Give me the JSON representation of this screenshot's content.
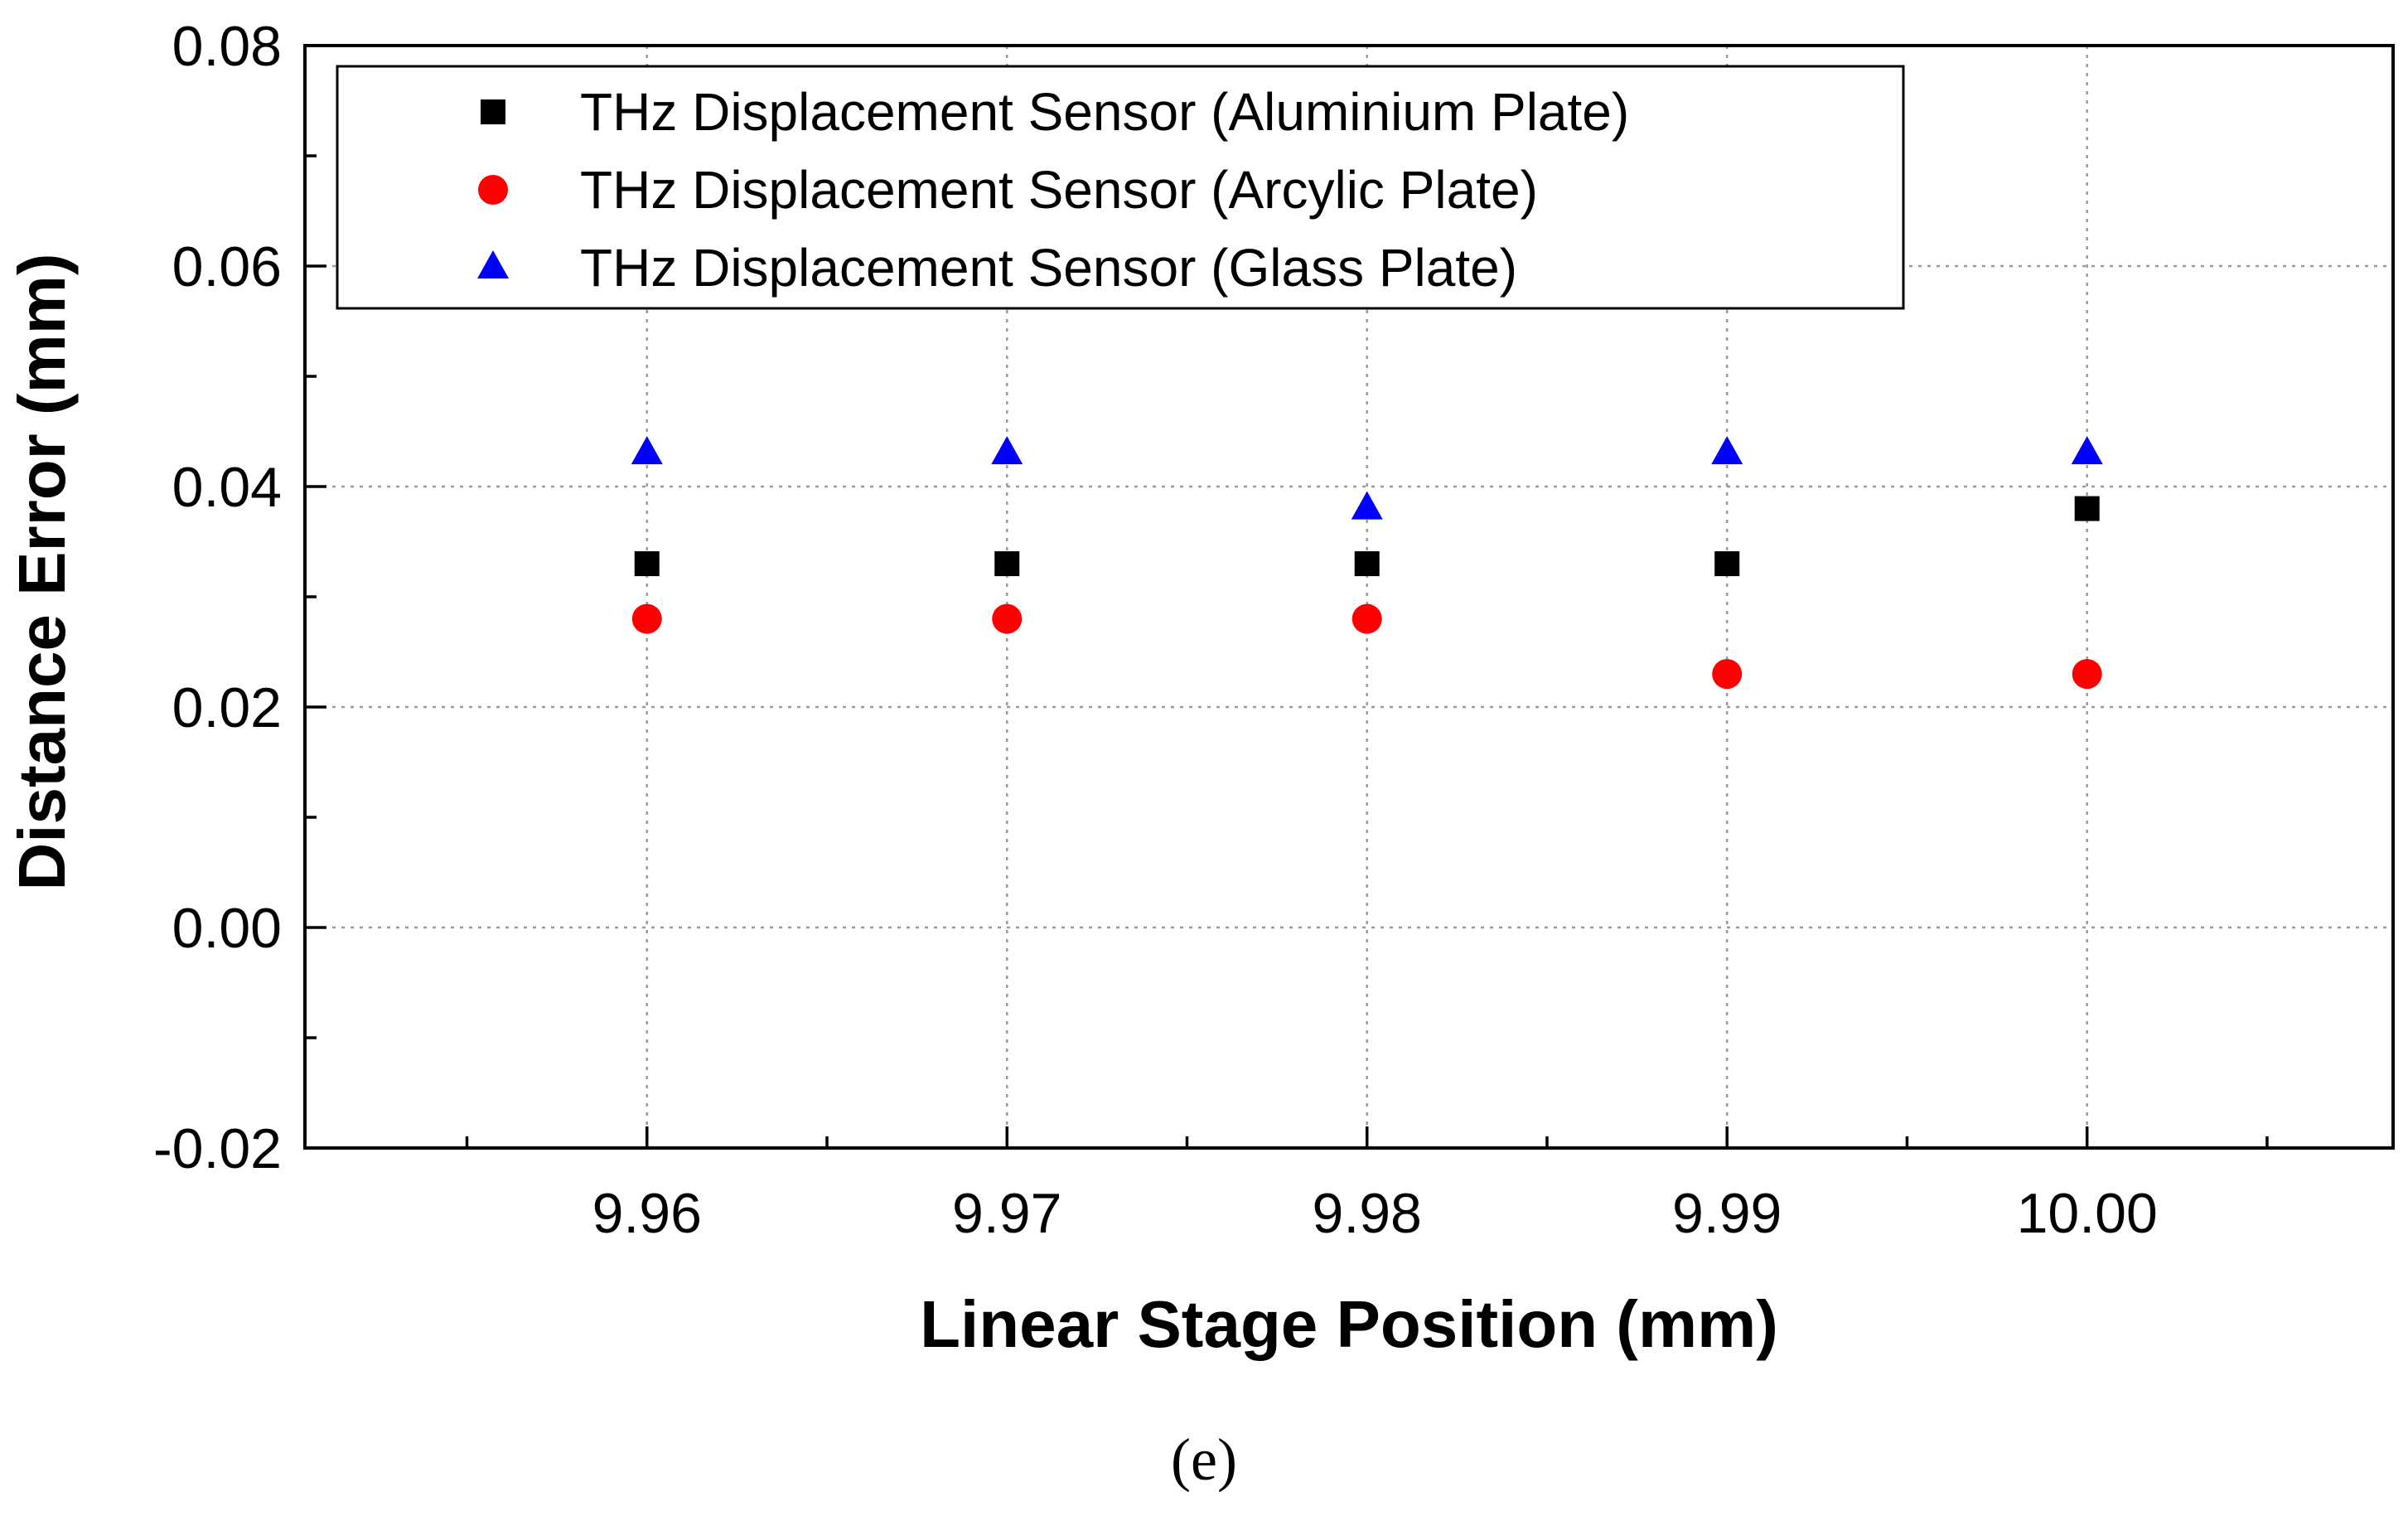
{
  "chart_data": {
    "type": "scatter",
    "title": "",
    "xlabel": "Linear Stage Position (mm)",
    "ylabel": "Distance Error (mm)",
    "xlim": [
      9.9505,
      10.0085
    ],
    "ylim": [
      -0.02,
      0.08
    ],
    "x_ticks": [
      9.96,
      9.97,
      9.98,
      9.99,
      10.0
    ],
    "x_tick_labels": [
      "9.96",
      "9.97",
      "9.98",
      "9.99",
      "10.00"
    ],
    "y_ticks": [
      -0.02,
      0.0,
      0.02,
      0.04,
      0.06,
      0.08
    ],
    "y_tick_labels": [
      "-0.02",
      "0.00",
      "0.02",
      "0.04",
      "0.06",
      "0.08"
    ],
    "grid": true,
    "legend_position": "top-left",
    "series": [
      {
        "name": "THz Displacement Sensor (Aluminium Plate)",
        "marker": "square",
        "color": "#000000",
        "x": [
          9.96,
          9.97,
          9.98,
          9.99,
          10.0
        ],
        "values": [
          0.033,
          0.033,
          0.033,
          0.033,
          0.038
        ]
      },
      {
        "name": "THz Displacement Sensor (Arcylic Plate)",
        "marker": "circle",
        "color": "#ff0000",
        "x": [
          9.96,
          9.97,
          9.98,
          9.99,
          10.0
        ],
        "values": [
          0.028,
          0.028,
          0.028,
          0.023,
          0.023
        ]
      },
      {
        "name": "THz Displacement Sensor (Glass Plate)",
        "marker": "triangle",
        "color": "#0000ff",
        "x": [
          9.96,
          9.97,
          9.98,
          9.99,
          10.0
        ],
        "values": [
          0.043,
          0.043,
          0.038,
          0.043,
          0.043
        ]
      }
    ],
    "caption": "(e)"
  }
}
